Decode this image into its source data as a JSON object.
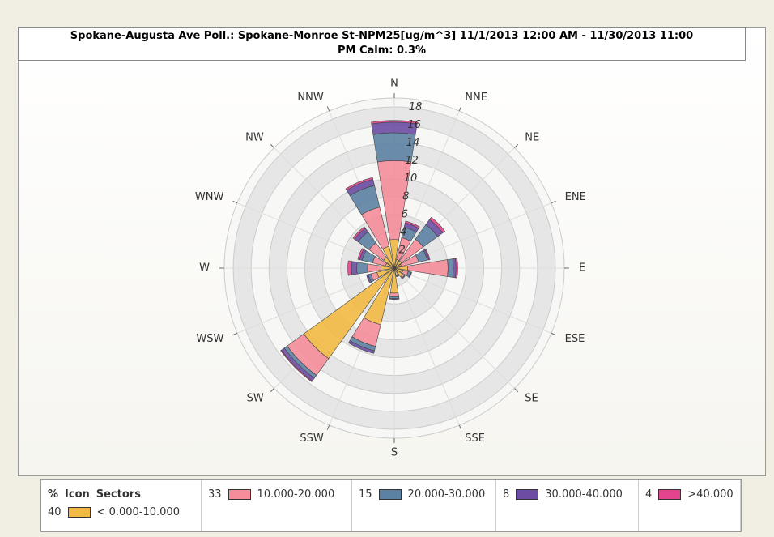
{
  "chart_data": {
    "type": "polar-stacked-bar",
    "title": "Spokane-Augusta Ave Poll.: Spokane-Monroe St-NPM25[ug/m^3] 11/1/2013 12:00 AM - 11/30/2013 11:00",
    "subtitle": "PM Calm: 0.3%",
    "categories": [
      "N",
      "NNE",
      "NE",
      "ENE",
      "E",
      "ESE",
      "SE",
      "SSE",
      "S",
      "SSW",
      "SW",
      "WSW",
      "W",
      "WNW",
      "NW",
      "NNW"
    ],
    "rlim": [
      0,
      19
    ],
    "rticks": [
      2,
      4,
      6,
      8,
      10,
      12,
      14,
      16,
      18
    ],
    "legend_headers": [
      "%",
      "Icon",
      "Sectors"
    ],
    "series": [
      {
        "name": "< 0.000-10.000",
        "percent": 40,
        "color": "#f2b944",
        "values": [
          3.2,
          1,
          1,
          0.8,
          1.5,
          1,
          1.2,
          0.8,
          2.8,
          6.5,
          12.5,
          2,
          1.5,
          1,
          1.5,
          2.5
        ]
      },
      {
        "name": "10.000-20.000",
        "percent": 33,
        "color": "#f58d9a",
        "values": [
          8.8,
          2.5,
          3,
          2,
          4.5,
          0.6,
          0.2,
          0.1,
          0.4,
          2.5,
          2.3,
          0.7,
          1.5,
          1.5,
          2,
          4.5
        ]
      },
      {
        "name": "20.000-30.000",
        "percent": 15,
        "color": "#5c82a3",
        "values": [
          3.1,
          1.2,
          2,
          1,
          0.6,
          0.3,
          0.1,
          0.1,
          0.2,
          0.5,
          0.4,
          0.3,
          1.2,
          1.2,
          1.5,
          2.5
        ]
      },
      {
        "name": "30.000-40.000",
        "percent": 8,
        "color": "#6c4da3",
        "values": [
          1.2,
          0.5,
          0.7,
          0.2,
          0.3,
          0.1,
          0,
          0,
          0.1,
          0.3,
          0.4,
          0.2,
          0.6,
          0.3,
          0.5,
          0.7
        ]
      },
      {
        "name": ">40.000",
        "percent": 4,
        "color": "#e3448d",
        "values": [
          0.2,
          0.2,
          0.3,
          0.1,
          0.2,
          0,
          0,
          0,
          0,
          0,
          0.1,
          0,
          0.4,
          0.2,
          0.2,
          0.2
        ]
      }
    ]
  }
}
